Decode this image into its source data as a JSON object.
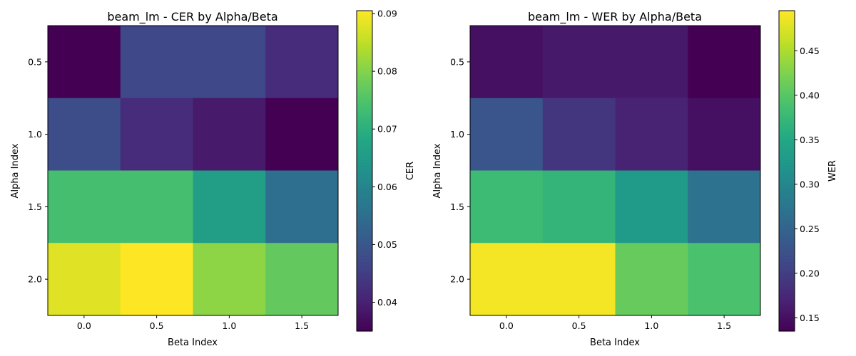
{
  "chart_data": [
    {
      "type": "heatmap",
      "title": "beam_lm - CER by Alpha/Beta",
      "xlabel": "Beta Index",
      "ylabel": "Alpha Index",
      "x_ticks": [
        "0.0",
        "0.5",
        "1.0",
        "1.5"
      ],
      "y_ticks": [
        "0.5",
        "1.0",
        "1.5",
        "2.0"
      ],
      "values": [
        [
          0.035,
          0.047,
          0.047,
          0.042
        ],
        [
          0.048,
          0.042,
          0.039,
          0.035
        ],
        [
          0.074,
          0.074,
          0.066,
          0.055
        ],
        [
          0.088,
          0.091,
          0.081,
          0.077
        ]
      ],
      "colorbar": {
        "label": "CER",
        "range": [
          0.035,
          0.0905
        ],
        "ticks": [
          0.04,
          0.05,
          0.06,
          0.07,
          0.08,
          0.09
        ],
        "tick_labels": [
          "0.04",
          "0.05",
          "0.06",
          "0.07",
          "0.08",
          "0.09"
        ]
      },
      "colormap": "viridis"
    },
    {
      "type": "heatmap",
      "title": "beam_lm - WER by Alpha/Beta",
      "xlabel": "Beta Index",
      "ylabel": "Alpha Index",
      "x_ticks": [
        "0.0",
        "0.5",
        "1.0",
        "1.5"
      ],
      "y_ticks": [
        "0.5",
        "1.0",
        "1.5",
        "2.0"
      ],
      "values": [
        [
          0.15,
          0.16,
          0.16,
          0.135
        ],
        [
          0.23,
          0.19,
          0.17,
          0.15
        ],
        [
          0.38,
          0.37,
          0.33,
          0.27
        ],
        [
          0.49,
          0.49,
          0.41,
          0.39
        ]
      ],
      "colorbar": {
        "label": "WER",
        "range": [
          0.135,
          0.495
        ],
        "ticks": [
          0.15,
          0.2,
          0.25,
          0.3,
          0.35,
          0.4,
          0.45
        ],
        "tick_labels": [
          "0.15",
          "0.20",
          "0.25",
          "0.30",
          "0.35",
          "0.40",
          "0.45"
        ]
      },
      "colormap": "viridis"
    }
  ]
}
